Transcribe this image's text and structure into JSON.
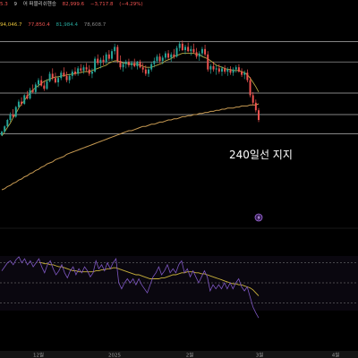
{
  "header": {
    "row1": {
      "ticker_fragment": "9",
      "name": "어 퍼블리쉬헨승",
      "prev": "82,999.6",
      "change": "−3,717.8",
      "change_pct": "(−4.29%)",
      "leading": "5.3"
    },
    "row2": {
      "ma1": "94,046.7",
      "ma2": "77,850.4",
      "ma3": "81,984.4",
      "ma4": "78,608.7"
    }
  },
  "annotation": {
    "text": "240일선 지지"
  },
  "colors": {
    "bg": "#000000",
    "up": "#26a69a",
    "down": "#ef5350",
    "ma_fast": "#b5a642",
    "ma240": "#c79a52",
    "rsi": "#7e57c2",
    "rsi_ma": "#c9b13b",
    "hline": "#d0d0d0"
  },
  "chart_data": {
    "type": "candlestick",
    "x_axis": {
      "ticks": [
        "12월",
        "2025",
        "2월",
        "3월",
        "4월"
      ]
    },
    "price": {
      "candles": [
        {
          "o": 0.1,
          "h": 0.5,
          "l": 0,
          "c": 0.4
        },
        {
          "o": 0.4,
          "h": 1.0,
          "l": 0.3,
          "c": 0.9
        },
        {
          "o": 0.9,
          "h": 1.6,
          "l": 0.8,
          "c": 1.5
        },
        {
          "o": 1.5,
          "h": 2.2,
          "l": 1.3,
          "c": 2.0
        },
        {
          "o": 2.0,
          "h": 2.5,
          "l": 1.7,
          "c": 1.8
        },
        {
          "o": 1.8,
          "h": 2.8,
          "l": 1.7,
          "c": 2.7
        },
        {
          "o": 2.7,
          "h": 3.4,
          "l": 2.6,
          "c": 3.2
        },
        {
          "o": 3.2,
          "h": 3.6,
          "l": 2.8,
          "c": 3.0
        },
        {
          "o": 3.0,
          "h": 3.9,
          "l": 2.9,
          "c": 3.8
        },
        {
          "o": 3.8,
          "h": 4.2,
          "l": 3.4,
          "c": 3.5
        },
        {
          "o": 3.5,
          "h": 4.5,
          "l": 3.4,
          "c": 4.3
        },
        {
          "o": 4.3,
          "h": 4.8,
          "l": 4.0,
          "c": 4.1
        },
        {
          "o": 4.1,
          "h": 5.0,
          "l": 3.9,
          "c": 4.8
        },
        {
          "o": 4.8,
          "h": 5.4,
          "l": 4.5,
          "c": 5.2
        },
        {
          "o": 5.2,
          "h": 5.6,
          "l": 4.6,
          "c": 4.7
        },
        {
          "o": 4.7,
          "h": 5.1,
          "l": 4.2,
          "c": 4.4
        },
        {
          "o": 4.4,
          "h": 5.3,
          "l": 4.3,
          "c": 5.1
        },
        {
          "o": 5.1,
          "h": 6.0,
          "l": 5.0,
          "c": 5.8
        },
        {
          "o": 5.8,
          "h": 6.3,
          "l": 5.2,
          "c": 5.4
        },
        {
          "o": 5.4,
          "h": 5.9,
          "l": 4.9,
          "c": 5.0
        },
        {
          "o": 5.0,
          "h": 5.6,
          "l": 4.6,
          "c": 5.4
        },
        {
          "o": 5.4,
          "h": 6.1,
          "l": 5.2,
          "c": 5.9
        },
        {
          "o": 5.9,
          "h": 6.4,
          "l": 5.5,
          "c": 5.6
        },
        {
          "o": 5.6,
          "h": 6.0,
          "l": 5.0,
          "c": 5.2
        },
        {
          "o": 5.2,
          "h": 5.8,
          "l": 4.9,
          "c": 5.6
        },
        {
          "o": 5.6,
          "h": 6.2,
          "l": 5.3,
          "c": 6.0
        },
        {
          "o": 6.0,
          "h": 6.4,
          "l": 5.6,
          "c": 5.8
        },
        {
          "o": 5.8,
          "h": 6.5,
          "l": 5.6,
          "c": 6.3
        },
        {
          "o": 6.3,
          "h": 6.7,
          "l": 5.9,
          "c": 6.1
        },
        {
          "o": 6.1,
          "h": 6.6,
          "l": 5.8,
          "c": 6.4
        },
        {
          "o": 6.4,
          "h": 6.8,
          "l": 6.0,
          "c": 6.2
        },
        {
          "o": 6.2,
          "h": 6.6,
          "l": 5.6,
          "c": 5.8
        },
        {
          "o": 5.8,
          "h": 6.3,
          "l": 5.4,
          "c": 6.0
        },
        {
          "o": 6.0,
          "h": 7.4,
          "l": 5.9,
          "c": 7.2
        },
        {
          "o": 7.2,
          "h": 7.6,
          "l": 6.6,
          "c": 6.8
        },
        {
          "o": 6.8,
          "h": 7.3,
          "l": 6.3,
          "c": 7.1
        },
        {
          "o": 7.1,
          "h": 7.5,
          "l": 6.6,
          "c": 6.9
        },
        {
          "o": 6.9,
          "h": 7.8,
          "l": 6.7,
          "c": 7.6
        },
        {
          "o": 7.6,
          "h": 8.0,
          "l": 7.0,
          "c": 7.2
        },
        {
          "o": 7.2,
          "h": 8.1,
          "l": 7.0,
          "c": 7.9
        },
        {
          "o": 7.9,
          "h": 8.6,
          "l": 7.6,
          "c": 8.3
        },
        {
          "o": 8.3,
          "h": 8.5,
          "l": 6.8,
          "c": 7.0
        },
        {
          "o": 7.0,
          "h": 7.5,
          "l": 6.2,
          "c": 6.4
        },
        {
          "o": 6.4,
          "h": 6.9,
          "l": 6.0,
          "c": 6.7
        },
        {
          "o": 6.7,
          "h": 7.1,
          "l": 6.3,
          "c": 6.9
        },
        {
          "o": 6.9,
          "h": 7.2,
          "l": 6.4,
          "c": 6.6
        },
        {
          "o": 6.6,
          "h": 7.0,
          "l": 6.2,
          "c": 6.8
        },
        {
          "o": 6.8,
          "h": 7.2,
          "l": 6.4,
          "c": 6.5
        },
        {
          "o": 6.5,
          "h": 7.0,
          "l": 6.2,
          "c": 6.9
        },
        {
          "o": 6.9,
          "h": 7.1,
          "l": 6.3,
          "c": 6.4
        },
        {
          "o": 6.4,
          "h": 6.8,
          "l": 5.9,
          "c": 6.2
        },
        {
          "o": 6.2,
          "h": 6.6,
          "l": 5.6,
          "c": 5.8
        },
        {
          "o": 5.8,
          "h": 6.4,
          "l": 5.5,
          "c": 6.2
        },
        {
          "o": 6.2,
          "h": 6.9,
          "l": 6.0,
          "c": 6.7
        },
        {
          "o": 6.7,
          "h": 7.3,
          "l": 6.4,
          "c": 7.0
        },
        {
          "o": 7.0,
          "h": 7.6,
          "l": 6.8,
          "c": 7.4
        },
        {
          "o": 7.4,
          "h": 7.7,
          "l": 6.8,
          "c": 7.0
        },
        {
          "o": 7.0,
          "h": 7.5,
          "l": 6.7,
          "c": 7.3
        },
        {
          "o": 7.3,
          "h": 7.9,
          "l": 7.1,
          "c": 7.7
        },
        {
          "o": 7.7,
          "h": 8.0,
          "l": 7.1,
          "c": 7.3
        },
        {
          "o": 7.3,
          "h": 7.8,
          "l": 6.9,
          "c": 7.6
        },
        {
          "o": 7.6,
          "h": 8.1,
          "l": 7.2,
          "c": 7.4
        },
        {
          "o": 7.4,
          "h": 8.4,
          "l": 7.3,
          "c": 8.2
        },
        {
          "o": 8.2,
          "h": 8.8,
          "l": 7.9,
          "c": 8.6
        },
        {
          "o": 8.6,
          "h": 8.9,
          "l": 7.9,
          "c": 8.0
        },
        {
          "o": 8.0,
          "h": 8.5,
          "l": 7.6,
          "c": 8.3
        },
        {
          "o": 8.3,
          "h": 8.7,
          "l": 7.8,
          "c": 7.9
        },
        {
          "o": 7.9,
          "h": 8.4,
          "l": 7.5,
          "c": 8.1
        },
        {
          "o": 8.1,
          "h": 8.6,
          "l": 7.7,
          "c": 7.8
        },
        {
          "o": 7.8,
          "h": 8.2,
          "l": 7.2,
          "c": 7.4
        },
        {
          "o": 7.4,
          "h": 7.9,
          "l": 7.0,
          "c": 7.7
        },
        {
          "o": 7.7,
          "h": 8.3,
          "l": 7.4,
          "c": 8.1
        },
        {
          "o": 8.1,
          "h": 8.5,
          "l": 7.4,
          "c": 7.6
        },
        {
          "o": 7.6,
          "h": 7.9,
          "l": 6.0,
          "c": 6.2
        },
        {
          "o": 6.2,
          "h": 6.7,
          "l": 5.8,
          "c": 6.5
        },
        {
          "o": 6.5,
          "h": 6.9,
          "l": 6.0,
          "c": 6.2
        },
        {
          "o": 6.2,
          "h": 6.6,
          "l": 5.7,
          "c": 6.3
        },
        {
          "o": 6.3,
          "h": 6.7,
          "l": 5.8,
          "c": 6.0
        },
        {
          "o": 6.0,
          "h": 6.5,
          "l": 5.6,
          "c": 6.3
        },
        {
          "o": 6.3,
          "h": 6.6,
          "l": 5.8,
          "c": 6.0
        },
        {
          "o": 6.0,
          "h": 6.4,
          "l": 5.6,
          "c": 6.2
        },
        {
          "o": 6.2,
          "h": 6.5,
          "l": 5.7,
          "c": 5.9
        },
        {
          "o": 5.9,
          "h": 6.4,
          "l": 5.6,
          "c": 6.2
        },
        {
          "o": 6.2,
          "h": 6.6,
          "l": 5.9,
          "c": 6.4
        },
        {
          "o": 6.4,
          "h": 6.7,
          "l": 5.9,
          "c": 6.0
        },
        {
          "o": 6.0,
          "h": 6.3,
          "l": 5.5,
          "c": 5.7
        },
        {
          "o": 5.7,
          "h": 6.1,
          "l": 5.3,
          "c": 5.9
        },
        {
          "o": 5.9,
          "h": 6.2,
          "l": 5.0,
          "c": 5.2
        },
        {
          "o": 5.2,
          "h": 5.5,
          "l": 3.6,
          "c": 3.8
        },
        {
          "o": 3.8,
          "h": 4.1,
          "l": 2.9,
          "c": 3.1
        },
        {
          "o": 3.1,
          "h": 3.4,
          "l": 2.2,
          "c": 2.4
        },
        {
          "o": 2.4,
          "h": 2.6,
          "l": 1.3,
          "c": 1.5
        }
      ],
      "ma_fast": [
        0,
        0.4,
        0.8,
        1.2,
        1.7,
        2.1,
        2.6,
        3.0,
        3.3,
        3.7,
        4.0,
        4.3,
        4.5,
        4.7,
        4.9,
        5.1,
        5.2,
        5.3,
        5.4,
        5.5,
        5.5,
        5.6,
        5.6,
        5.7,
        5.7,
        5.8,
        5.8,
        5.9,
        5.9,
        6.0,
        6.0,
        6.0,
        6.1,
        6.2,
        6.3,
        6.4,
        6.5,
        6.6,
        6.8,
        6.9,
        7.0,
        7.0,
        6.9,
        6.8,
        6.8,
        6.7,
        6.7,
        6.7,
        6.7,
        6.6,
        6.5,
        6.4,
        6.4,
        6.4,
        6.5,
        6.6,
        6.7,
        6.8,
        7.0,
        7.1,
        7.2,
        7.4,
        7.5,
        7.6,
        7.7,
        7.7,
        7.7,
        7.7,
        7.7,
        7.6,
        7.6,
        7.4,
        7.3,
        7.2,
        7.0,
        6.8,
        6.6,
        6.5,
        6.4,
        6.3,
        6.2,
        6.2,
        6.1,
        6.1,
        6.1,
        6.0,
        5.9,
        5.7,
        5.4,
        5.0,
        4.6,
        4.1
      ],
      "ma240": [
        -5.0,
        -4.9,
        -4.7,
        -4.6,
        -4.4,
        -4.3,
        -4.1,
        -4.0,
        -3.8,
        -3.7,
        -3.5,
        -3.4,
        -3.2,
        -3.1,
        -2.9,
        -2.8,
        -2.6,
        -2.5,
        -2.4,
        -2.2,
        -2.1,
        -2.0,
        -1.9,
        -1.7,
        -1.6,
        -1.5,
        -1.4,
        -1.3,
        -1.2,
        -1.1,
        -1.0,
        -0.9,
        -0.8,
        -0.7,
        -0.6,
        -0.5,
        -0.4,
        -0.3,
        -0.2,
        -0.1,
        0,
        0.1,
        0.2,
        0.3,
        0.4,
        0.5,
        0.5,
        0.6,
        0.7,
        0.8,
        0.9,
        0.9,
        1.0,
        1.1,
        1.1,
        1.2,
        1.3,
        1.3,
        1.4,
        1.5,
        1.5,
        1.6,
        1.6,
        1.7,
        1.8,
        1.8,
        1.9,
        1.9,
        2.0,
        2.0,
        2.1,
        2.1,
        2.2,
        2.2,
        2.3,
        2.3,
        2.4,
        2.4,
        2.5,
        2.5,
        2.6,
        2.6,
        2.6,
        2.7,
        2.7,
        2.8,
        2.8,
        2.8,
        2.9,
        2.9,
        2.9,
        3.0
      ],
      "hlines": [
        8.8,
        6.9,
        4.0,
        2.0,
        0.2
      ]
    },
    "rsi": {
      "values": [
        62,
        66,
        70,
        72,
        68,
        73,
        76,
        70,
        74,
        68,
        72,
        66,
        70,
        74,
        66,
        60,
        68,
        72,
        64,
        58,
        62,
        68,
        60,
        55,
        62,
        66,
        58,
        64,
        60,
        66,
        62,
        56,
        60,
        72,
        64,
        68,
        62,
        70,
        64,
        70,
        74,
        50,
        44,
        50,
        54,
        50,
        54,
        48,
        54,
        48,
        44,
        40,
        48,
        56,
        60,
        66,
        58,
        62,
        68,
        60,
        64,
        60,
        68,
        72,
        60,
        64,
        56,
        62,
        56,
        50,
        56,
        62,
        56,
        42,
        48,
        44,
        48,
        44,
        50,
        44,
        50,
        44,
        50,
        54,
        46,
        42,
        46,
        36,
        26,
        20,
        15
      ],
      "ma": [
        null,
        null,
        null,
        null,
        null,
        null,
        null,
        null,
        null,
        null,
        null,
        null,
        null,
        70,
        70,
        69,
        69,
        68,
        68,
        67,
        66,
        66,
        65,
        64,
        63,
        62,
        62,
        61,
        61,
        61,
        61,
        61,
        61,
        62,
        62,
        63,
        63,
        64,
        64,
        65,
        65,
        64,
        63,
        62,
        61,
        60,
        59,
        58,
        58,
        57,
        56,
        55,
        54,
        54,
        54,
        54,
        55,
        55,
        56,
        57,
        58,
        58,
        59,
        60,
        60,
        61,
        61,
        61,
        60,
        60,
        59,
        59,
        58,
        57,
        56,
        55,
        54,
        53,
        52,
        51,
        50,
        49,
        49,
        48,
        48,
        47,
        46,
        45,
        43,
        40,
        37
      ],
      "levels": [
        70,
        50,
        30
      ],
      "ylim": [
        0,
        100
      ]
    }
  }
}
